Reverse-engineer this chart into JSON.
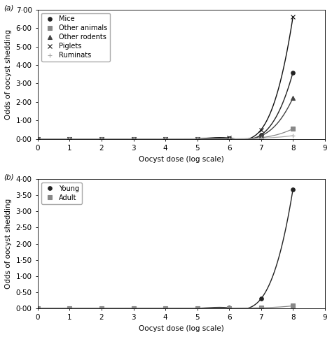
{
  "panel_a": {
    "x": [
      0,
      1,
      2,
      3,
      4,
      5,
      6,
      7,
      8
    ],
    "series": {
      "Mice": {
        "y": [
          0.0,
          0.0,
          0.0,
          0.0,
          0.0,
          0.005,
          0.02,
          0.22,
          3.6
        ],
        "color": "#222222",
        "marker": "o",
        "markersize": 4,
        "linewidth": 1.0,
        "linestyle": "-"
      },
      "Other animals": {
        "y": [
          0.0,
          0.0,
          0.0,
          0.0,
          0.0,
          0.0,
          0.005,
          0.07,
          0.55
        ],
        "color": "#888888",
        "marker": "s",
        "markersize": 4,
        "linewidth": 0.9,
        "linestyle": "-"
      },
      "Other rodents": {
        "y": [
          0.0,
          0.0,
          0.0,
          0.0,
          0.0,
          0.0,
          0.01,
          0.17,
          2.22
        ],
        "color": "#444444",
        "marker": "^",
        "markersize": 4,
        "linewidth": 1.0,
        "linestyle": "-"
      },
      "Piglets": {
        "y": [
          0.0,
          0.0,
          0.0,
          0.0,
          0.0,
          0.01,
          0.05,
          0.5,
          6.6
        ],
        "color": "#111111",
        "marker": "x",
        "markersize": 5,
        "linewidth": 1.0,
        "linestyle": "-"
      },
      "Ruminats": {
        "y": [
          0.0,
          0.0,
          0.0,
          0.0,
          0.0,
          0.0,
          0.005,
          0.04,
          0.18
        ],
        "color": "#aaaaaa",
        "marker": "+",
        "markersize": 5,
        "linewidth": 0.9,
        "linestyle": "-"
      }
    },
    "ylim": [
      0,
      7.0
    ],
    "yticks": [
      0.0,
      1.0,
      2.0,
      3.0,
      4.0,
      5.0,
      6.0,
      7.0
    ],
    "ytick_labels": [
      "0·00",
      "1·00",
      "2·00",
      "3·00",
      "4·00",
      "5·00",
      "6·00",
      "7·00"
    ],
    "xlim": [
      0,
      9
    ],
    "xticks": [
      0,
      1,
      2,
      3,
      4,
      5,
      6,
      7,
      8,
      9
    ],
    "xlabel": "Oocyst dose (log scale)",
    "ylabel": "Odds of oocyst shedding",
    "panel_label": "(a)"
  },
  "panel_b": {
    "x": [
      0,
      1,
      2,
      3,
      4,
      5,
      6,
      7,
      8
    ],
    "series": {
      "Young": {
        "y": [
          0.0,
          0.0,
          0.0,
          0.0,
          0.0,
          0.005,
          0.02,
          0.3,
          3.68
        ],
        "color": "#222222",
        "marker": "o",
        "markersize": 4,
        "linewidth": 1.0,
        "linestyle": "-"
      },
      "Adult": {
        "y": [
          0.0,
          0.005,
          0.005,
          0.005,
          0.005,
          0.005,
          0.01,
          0.02,
          0.08
        ],
        "color": "#888888",
        "marker": "s",
        "markersize": 4,
        "linewidth": 0.9,
        "linestyle": "-"
      }
    },
    "ylim": [
      0,
      4.0
    ],
    "yticks": [
      0.0,
      0.5,
      1.0,
      1.5,
      2.0,
      2.5,
      3.0,
      3.5,
      4.0
    ],
    "ytick_labels": [
      "0·00",
      "0·50",
      "1·00",
      "1·50",
      "2·00",
      "2·50",
      "3·00",
      "3·50",
      "4·00"
    ],
    "xlim": [
      0,
      9
    ],
    "xticks": [
      0,
      1,
      2,
      3,
      4,
      5,
      6,
      7,
      8,
      9
    ],
    "xlabel": "Oocyst dose (log scale)",
    "ylabel": "Odds of oocyst shedding",
    "panel_label": "(b)"
  },
  "figure_bg": "#ffffff",
  "axes_bg": "#ffffff",
  "font_size": 7.5,
  "label_fontsize": 7.5,
  "legend_fontsize": 7.0
}
